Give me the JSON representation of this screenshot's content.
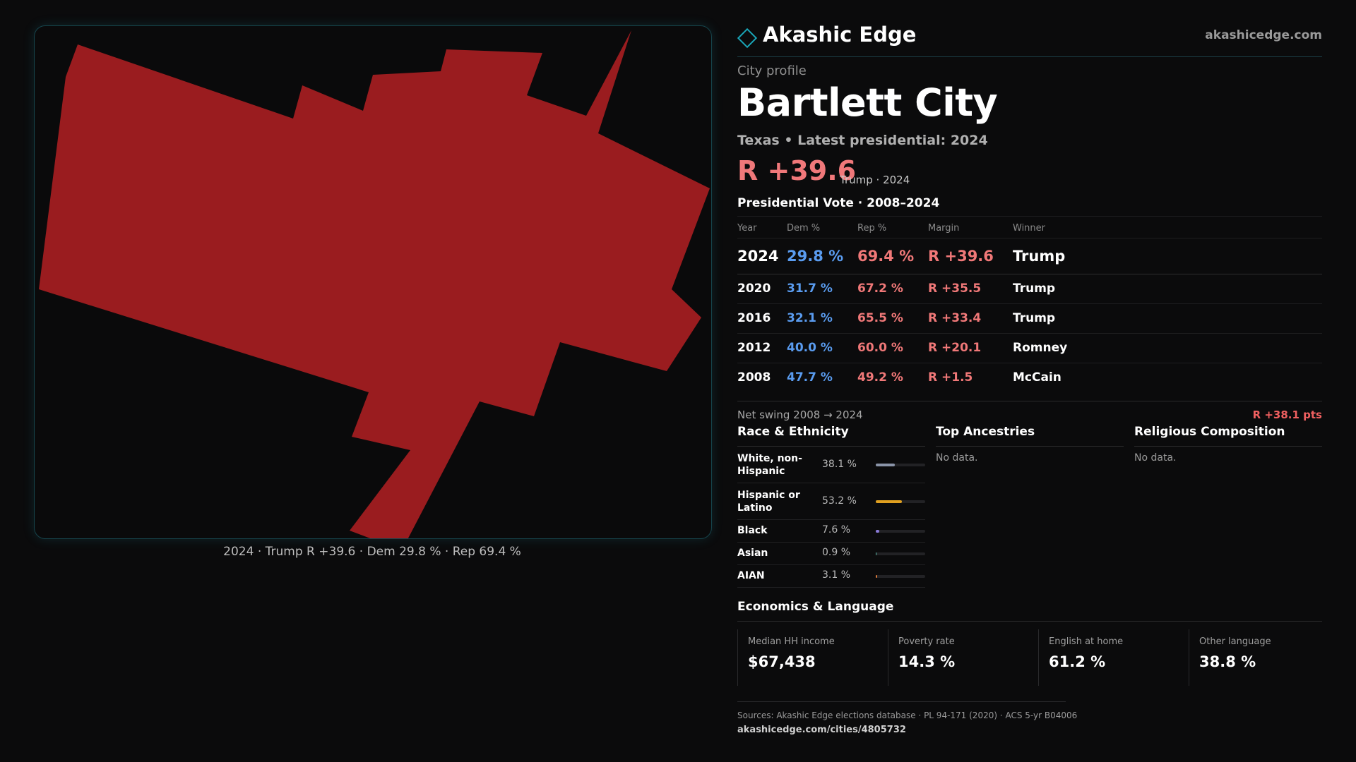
{
  "header": {
    "brand": "Akashic Edge",
    "site": "akashicedge.com"
  },
  "profile": {
    "eyebrow": "City profile",
    "city": "Bartlett City",
    "subline": "Texas • Latest presidential: 2024",
    "margin": "R +39.6",
    "margin_note": "Trump · 2024"
  },
  "map": {
    "caption": "2024 · Trump R +39.6 · Dem 29.8 % · Rep 69.4 %",
    "fill_color": "#9a1c1f",
    "border_color": "#16444c"
  },
  "vote": {
    "heading": "Presidential Vote · 2008–2024",
    "columns": [
      "Year",
      "Dem %",
      "Rep %",
      "Margin",
      "Winner"
    ],
    "rows": [
      {
        "year": "2024",
        "dem": "29.8 %",
        "rep": "69.4 %",
        "margin": "R +39.6",
        "winner": "Trump"
      },
      {
        "year": "2020",
        "dem": "31.7 %",
        "rep": "67.2 %",
        "margin": "R +35.5",
        "winner": "Trump"
      },
      {
        "year": "2016",
        "dem": "32.1 %",
        "rep": "65.5 %",
        "margin": "R +33.4",
        "winner": "Trump"
      },
      {
        "year": "2012",
        "dem": "40.0 %",
        "rep": "60.0 %",
        "margin": "R +20.1",
        "winner": "Romney"
      },
      {
        "year": "2008",
        "dem": "47.7 %",
        "rep": "49.2 %",
        "margin": "R +1.5",
        "winner": "McCain"
      }
    ],
    "swing_label": "Net swing 2008 → 2024",
    "swing_value": "R +38.1 pts"
  },
  "race": {
    "title": "Race & Ethnicity",
    "rows": [
      {
        "label": "White, non-Hispanic",
        "value": "38.1 %",
        "share": 38.1,
        "color": "#8a94a8"
      },
      {
        "label": "Hispanic or Latino",
        "value": "53.2 %",
        "share": 53.2,
        "color": "#e0a020"
      },
      {
        "label": "Black",
        "value": "7.6 %",
        "share": 7.6,
        "color": "#8a7ad8"
      },
      {
        "label": "Asian",
        "value": "0.9 %",
        "share": 0.9,
        "color": "#5ab8a8"
      },
      {
        "label": "AIAN",
        "value": "3.1 %",
        "share": 3.1,
        "color": "#d8783a"
      }
    ]
  },
  "ancestries": {
    "title": "Top Ancestries",
    "empty": "No data."
  },
  "religion": {
    "title": "Religious Composition",
    "empty": "No data."
  },
  "economics": {
    "title": "Economics & Language",
    "cards": [
      {
        "label": "Median HH income",
        "value": "$67,438"
      },
      {
        "label": "Poverty rate",
        "value": "14.3 %"
      },
      {
        "label": "English at home",
        "value": "61.2 %"
      },
      {
        "label": "Other language",
        "value": "38.8 %"
      }
    ]
  },
  "sources": {
    "text": "Sources: Akashic Edge elections database · PL 94-171 (2020) · ACS 5-yr B04006",
    "url": "akashicedge.com/cities/4805732"
  }
}
